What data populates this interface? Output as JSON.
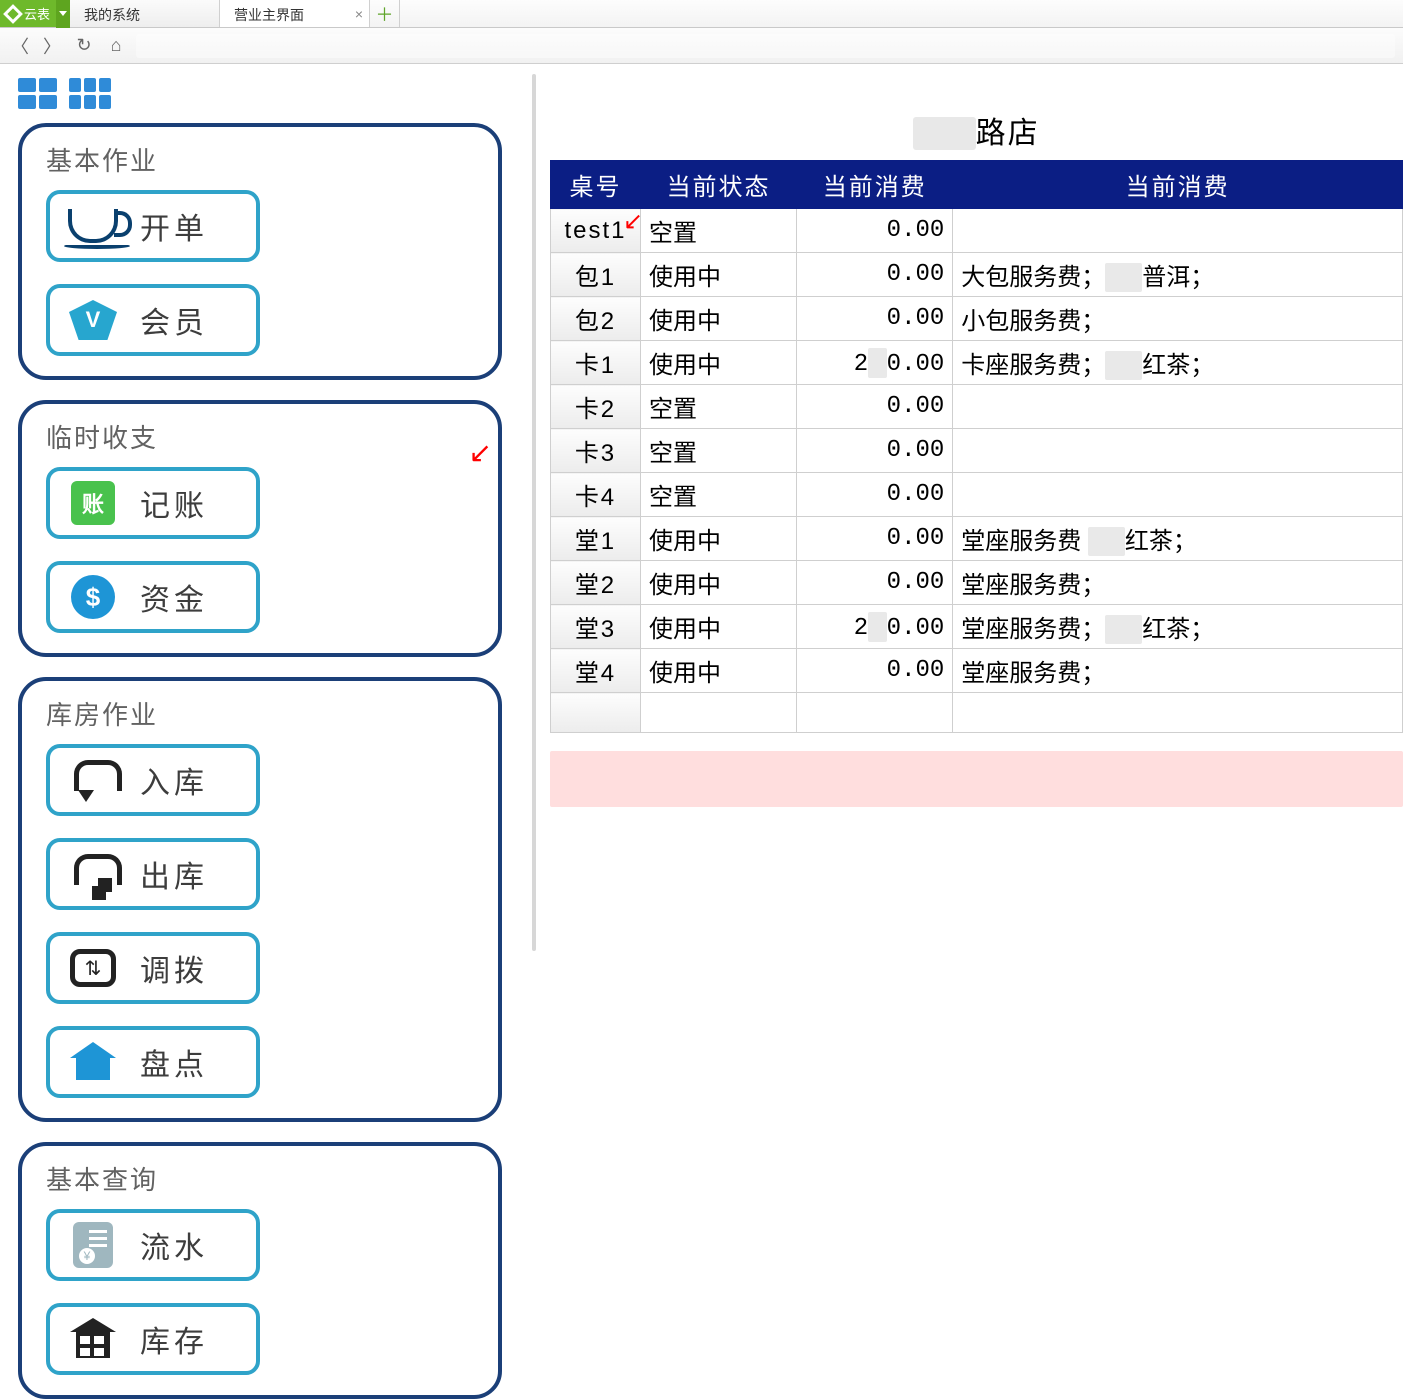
{
  "app": {
    "name": "云表"
  },
  "tabs": [
    {
      "label": "我的系统",
      "active": false,
      "closable": false
    },
    {
      "label": "营业主界面",
      "active": true,
      "closable": true
    }
  ],
  "panels": {
    "basic_ops": {
      "title": "基本作业",
      "buttons": [
        {
          "id": "open-order",
          "label": "开单",
          "icon": "cup"
        },
        {
          "id": "member",
          "label": "会员",
          "icon": "vip"
        }
      ]
    },
    "temp_finance": {
      "title": "临时收支",
      "buttons": [
        {
          "id": "ledger",
          "label": "记账",
          "icon": "ledger"
        },
        {
          "id": "funds",
          "label": "资金",
          "icon": "dollar"
        }
      ]
    },
    "warehouse": {
      "title": "库房作业",
      "buttons": [
        {
          "id": "stock-in",
          "label": "入库",
          "icon": "in"
        },
        {
          "id": "stock-out",
          "label": "出库",
          "icon": "out"
        },
        {
          "id": "transfer",
          "label": "调拨",
          "icon": "transfer"
        },
        {
          "id": "inventory",
          "label": "盘点",
          "icon": "stock"
        }
      ]
    },
    "query": {
      "title": "基本查询",
      "buttons": [
        {
          "id": "flow",
          "label": "流水",
          "icon": "flow"
        },
        {
          "id": "stock",
          "label": "库存",
          "icon": "inv"
        }
      ]
    }
  },
  "store": {
    "title_suffix": "路店",
    "columns": [
      "桌号",
      "当前状态",
      "当前消费",
      "当前消费"
    ],
    "rows": [
      {
        "table": "test1",
        "status": "空置",
        "amount": "0.00",
        "detail": ""
      },
      {
        "table": "包1",
        "status": "使用中",
        "amount": "0.00",
        "detail": "大包服务费；▇▇普洱；"
      },
      {
        "table": "包2",
        "status": "使用中",
        "amount": "0.00",
        "detail": "小包服务费；"
      },
      {
        "table": "卡1",
        "status": "使用中",
        "amount": "2▇0.00",
        "detail": "卡座服务费；▇▇红茶；"
      },
      {
        "table": "卡2",
        "status": "空置",
        "amount": "0.00",
        "detail": ""
      },
      {
        "table": "卡3",
        "status": "空置",
        "amount": "0.00",
        "detail": ""
      },
      {
        "table": "卡4",
        "status": "空置",
        "amount": "0.00",
        "detail": ""
      },
      {
        "table": "堂1",
        "status": "使用中",
        "amount": "0.00",
        "detail": "堂座服务费 ▇▇红茶；"
      },
      {
        "table": "堂2",
        "status": "使用中",
        "amount": "0.00",
        "detail": "堂座服务费；"
      },
      {
        "table": "堂3",
        "status": "使用中",
        "amount": "2▇0.00",
        "detail": "堂座服务费；▇▇红茶；"
      },
      {
        "table": "堂4",
        "status": "使用中",
        "amount": "0.00",
        "detail": "堂座服务费；"
      }
    ]
  },
  "colors": {
    "panel_border": "#1b3f78",
    "button_border": "#2fa3c9",
    "table_header_bg": "#0b1e84",
    "accent_green": "#6eb92b"
  }
}
